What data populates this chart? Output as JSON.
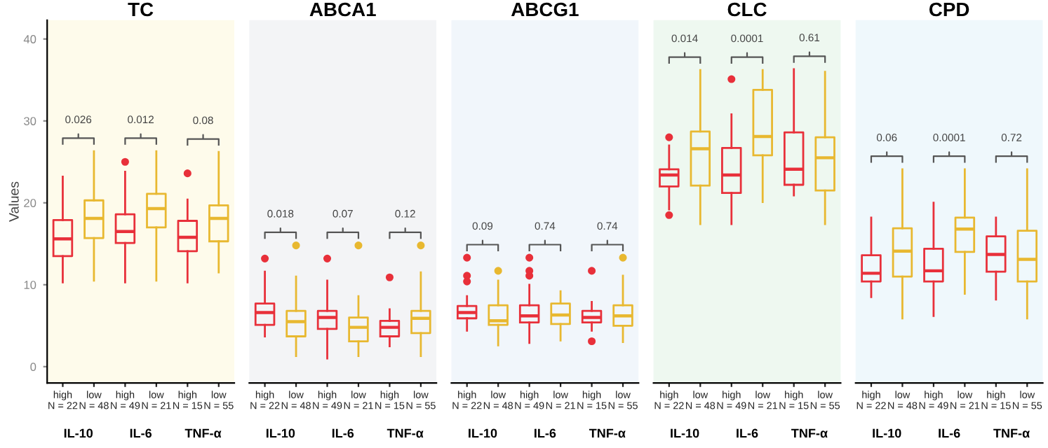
{
  "chart_data": [
    {
      "type": "box",
      "title": "TC",
      "ylabel": "Values",
      "categories": [
        "high\nN = 22",
        "low\nN = 48",
        "high\nN = 49",
        "low\nN = 21",
        "high\nN = 15",
        "low\nN = 55"
      ],
      "colors": [
        "#e8303a",
        "#e8b830",
        "#e8303a",
        "#e8b830",
        "#e8303a",
        "#e8b830"
      ],
      "ylim": [
        -2,
        42.3
      ],
      "yticks": [
        0,
        10,
        20,
        30,
        40
      ],
      "grid": false,
      "boxes": [
        {
          "low": 10.3,
          "q1": 13.5,
          "median": 15.6,
          "q3": 17.9,
          "high": 23.2
        },
        {
          "low": 10.5,
          "q1": 15.7,
          "median": 18.1,
          "q3": 20.3,
          "high": 26.3
        },
        {
          "low": 10.3,
          "q1": 15.1,
          "median": 16.5,
          "q3": 18.6,
          "high": 23.8,
          "outliers": [
            25.0
          ]
        },
        {
          "low": 10.5,
          "q1": 17.0,
          "median": 19.3,
          "q3": 21.1,
          "high": 26.3
        },
        {
          "low": 10.3,
          "q1": 14.1,
          "median": 15.8,
          "q3": 17.8,
          "high": 20.4,
          "outliers": [
            23.6
          ]
        },
        {
          "low": 11.5,
          "q1": 15.3,
          "median": 18.1,
          "q3": 19.7,
          "high": 26.2
        }
      ],
      "annotations": [
        "0.026",
        "0.012",
        "0.08",
        "IL-10",
        "IL-6",
        "TNF-α"
      ]
    },
    {
      "type": "box",
      "title": "ABCA1",
      "categories": [
        "high\nN = 22",
        "low\nN = 48",
        "high\nN = 49",
        "low\nN = 21",
        "high\nN = 15",
        "low\nN = 55"
      ],
      "colors": [
        "#e8303a",
        "#e8b830",
        "#e8303a",
        "#e8b830",
        "#e8303a",
        "#e8b830"
      ],
      "ylim": [
        -2,
        42.3
      ],
      "yticks": [
        0,
        10,
        20,
        30,
        40
      ],
      "tick_labels": "x",
      "grid": false,
      "boxes": [
        {
          "low": 3.7,
          "q1": 5.1,
          "median": 6.6,
          "q3": 7.7,
          "high": 11.6,
          "outliers": [
            13.2
          ]
        },
        {
          "low": 1.3,
          "q1": 3.7,
          "median": 5.5,
          "q3": 6.8,
          "high": 11.0,
          "outliers": [
            14.8
          ]
        },
        {
          "low": 1.0,
          "q1": 4.6,
          "median": 6.0,
          "q3": 6.8,
          "high": 10.5,
          "outliers": [
            13.2
          ]
        },
        {
          "low": 1.3,
          "q1": 3.1,
          "median": 4.8,
          "q3": 6.0,
          "high": 8.6,
          "outliers": [
            14.8
          ]
        },
        {
          "low": 2.5,
          "q1": 3.7,
          "median": 4.8,
          "q3": 5.6,
          "high": 7.0,
          "outliers": [
            10.9
          ]
        },
        {
          "low": 1.3,
          "q1": 4.1,
          "median": 5.9,
          "q3": 6.8,
          "high": 11.5,
          "outliers": [
            14.8
          ]
        }
      ],
      "annotations": [
        "0.018",
        "0.07",
        "0.12",
        "IL-10",
        "IL-6",
        "TNF-α"
      ]
    },
    {
      "type": "box",
      "title": "ABCG1",
      "categories": [
        "high\nN = 22",
        "low\nN = 48",
        "high\nN = 49",
        "low\nN = 21",
        "high\nN = 15",
        "low\nN = 55"
      ],
      "colors": [
        "#e8303a",
        "#e8b830",
        "#e8303a",
        "#e8b830",
        "#e8303a",
        "#e8b830"
      ],
      "ylim": [
        -2,
        42.3
      ],
      "yticks": [
        0,
        10,
        20,
        30,
        40
      ],
      "tick_labels": "x",
      "grid": false,
      "boxes": [
        {
          "low": 4.4,
          "q1": 5.9,
          "median": 6.6,
          "q3": 7.4,
          "high": 8.6,
          "outliers": [
            13.3,
            11.1,
            10.4
          ]
        },
        {
          "low": 2.6,
          "q1": 5.1,
          "median": 5.6,
          "q3": 7.5,
          "high": 10.5,
          "outliers": [
            11.7
          ]
        },
        {
          "low": 2.9,
          "q1": 5.4,
          "median": 6.2,
          "q3": 7.5,
          "high": 10.0,
          "outliers": [
            13.3,
            11.7,
            11.1
          ]
        },
        {
          "low": 3.2,
          "q1": 5.2,
          "median": 6.3,
          "q3": 7.7,
          "high": 9.2
        },
        {
          "low": 4.4,
          "q1": 5.4,
          "median": 6.0,
          "q3": 6.8,
          "high": 7.9,
          "outliers": [
            11.7,
            3.1
          ]
        },
        {
          "low": 3.0,
          "q1": 5.0,
          "median": 6.2,
          "q3": 7.5,
          "high": 11.1,
          "outliers": [
            13.3
          ]
        }
      ],
      "annotations": [
        "0.09",
        "0.74",
        "0.74",
        "IL-10",
        "IL-6",
        "TNF-α"
      ]
    },
    {
      "type": "box",
      "title": "CLC",
      "categories": [
        "high\nN = 22",
        "low\nN = 48",
        "high\nN = 49",
        "low\nN = 21",
        "high\nN = 15",
        "low\nN = 55"
      ],
      "colors": [
        "#e8303a",
        "#e8b830",
        "#e8303a",
        "#e8b830",
        "#e8303a",
        "#e8b830"
      ],
      "ylim": [
        -2,
        42.3
      ],
      "yticks": [
        0,
        10,
        20,
        30,
        40
      ],
      "tick_labels": "x",
      "grid": false,
      "boxes": [
        {
          "low": 19.2,
          "q1": 22.0,
          "median": 23.4,
          "q3": 24.1,
          "high": 27.0,
          "outliers": [
            28.0,
            18.5
          ]
        },
        {
          "low": 17.4,
          "q1": 22.1,
          "median": 26.6,
          "q3": 28.7,
          "high": 36.2
        },
        {
          "low": 17.4,
          "q1": 21.2,
          "median": 23.4,
          "q3": 26.7,
          "high": 30.8,
          "outliers": [
            35.1
          ]
        },
        {
          "low": 20.1,
          "q1": 25.8,
          "median": 28.1,
          "q3": 33.8,
          "high": 36.2
        },
        {
          "low": 20.9,
          "q1": 22.2,
          "median": 24.1,
          "q3": 28.6,
          "high": 36.3
        },
        {
          "low": 17.4,
          "q1": 21.5,
          "median": 25.5,
          "q3": 28.0,
          "high": 36.0
        }
      ],
      "annotations": [
        "0.014",
        "0.0001",
        "0.61",
        "IL-10",
        "IL-6",
        "TNF-α"
      ]
    },
    {
      "type": "box",
      "title": "CPD",
      "categories": [
        "high\nN = 22",
        "low\nN = 48",
        "high\nN = 49",
        "low\nN = 21",
        "high\nN = 15",
        "low\nN = 55"
      ],
      "colors": [
        "#e8303a",
        "#e8b830",
        "#e8303a",
        "#e8b830",
        "#e8303a",
        "#e8b830"
      ],
      "ylim": [
        -2,
        42.3
      ],
      "yticks": [
        0,
        10,
        20,
        30,
        40
      ],
      "tick_labels": "x",
      "grid": false,
      "boxes": [
        {
          "low": 8.5,
          "q1": 10.4,
          "median": 11.4,
          "q3": 13.6,
          "high": 18.2
        },
        {
          "low": 5.9,
          "q1": 11.0,
          "median": 14.1,
          "q3": 16.9,
          "high": 24.1
        },
        {
          "low": 6.2,
          "q1": 10.4,
          "median": 11.7,
          "q3": 14.4,
          "high": 20.0
        },
        {
          "low": 8.9,
          "q1": 14.0,
          "median": 16.8,
          "q3": 18.2,
          "high": 24.1
        },
        {
          "low": 8.2,
          "q1": 11.6,
          "median": 13.7,
          "q3": 15.9,
          "high": 18.2
        },
        {
          "low": 5.9,
          "q1": 10.4,
          "median": 13.1,
          "q3": 16.6,
          "high": 24.1
        }
      ],
      "annotations": [
        "0.06",
        "0.0001",
        "0.72",
        "IL-10",
        "IL-6",
        "TNF-α"
      ]
    }
  ]
}
